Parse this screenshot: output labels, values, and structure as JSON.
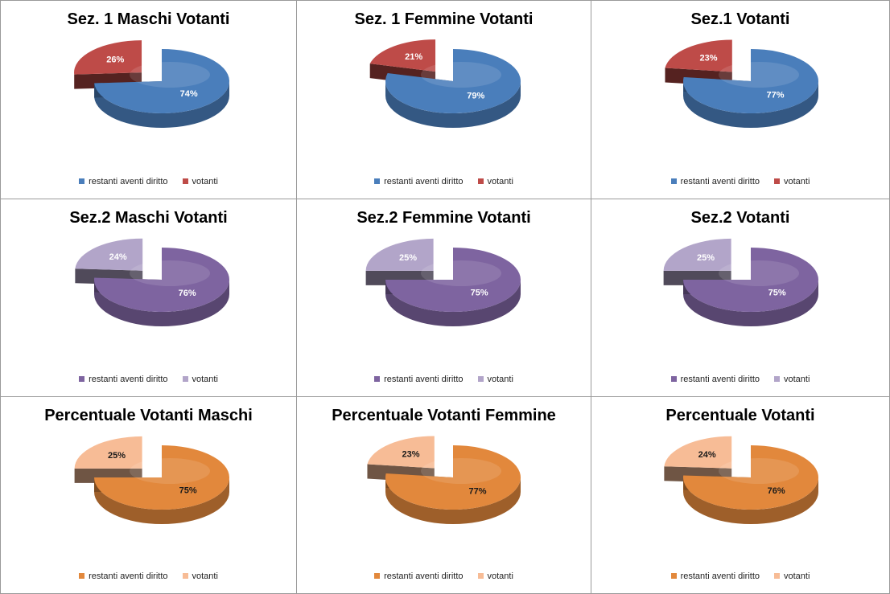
{
  "chart_data": [
    {
      "type": "pie",
      "title": "Sez. 1 Maschi Votanti",
      "slices": [
        {
          "label": "restanti aventi diritto",
          "value": 74,
          "text": "74%"
        },
        {
          "label": "votanti",
          "value": 26,
          "text": "26%"
        }
      ],
      "colors": {
        "main": "#4a7ebb",
        "exploded": "#be4b48"
      },
      "label_color": "#ffffff",
      "legend": [
        "restanti aventi diritto",
        "votanti"
      ],
      "legend_position": "bottom"
    },
    {
      "type": "pie",
      "title": "Sez. 1  Femmine Votanti",
      "slices": [
        {
          "label": "restanti aventi diritto",
          "value": 79,
          "text": "79%"
        },
        {
          "label": "votanti",
          "value": 21,
          "text": "21%"
        }
      ],
      "colors": {
        "main": "#4a7ebb",
        "exploded": "#be4b48"
      },
      "label_color": "#ffffff",
      "legend": [
        "restanti aventi diritto",
        "votanti"
      ],
      "legend_position": "bottom"
    },
    {
      "type": "pie",
      "title": "Sez.1  Votanti",
      "slices": [
        {
          "label": "restanti aventi diritto",
          "value": 77,
          "text": "77%"
        },
        {
          "label": "votanti",
          "value": 23,
          "text": "23%"
        }
      ],
      "colors": {
        "main": "#4a7ebb",
        "exploded": "#be4b48"
      },
      "label_color": "#ffffff",
      "legend": [
        "restanti aventi diritto",
        "votanti"
      ],
      "legend_position": "bottom"
    },
    {
      "type": "pie",
      "title": "Sez.2  Maschi Votanti",
      "slices": [
        {
          "label": "restanti aventi diritto",
          "value": 76,
          "text": "76%"
        },
        {
          "label": "votanti",
          "value": 24,
          "text": "24%"
        }
      ],
      "colors": {
        "main": "#7e64a0",
        "exploded": "#b2a5c9"
      },
      "label_color": "#ffffff",
      "legend": [
        "restanti aventi diritto",
        "votanti"
      ],
      "legend_position": "bottom"
    },
    {
      "type": "pie",
      "title": "Sez.2 Femmine Votanti",
      "slices": [
        {
          "label": "restanti aventi diritto",
          "value": 75,
          "text": "75%"
        },
        {
          "label": "votanti",
          "value": 25,
          "text": "25%"
        }
      ],
      "colors": {
        "main": "#7e64a0",
        "exploded": "#b2a5c9"
      },
      "label_color": "#ffffff",
      "legend": [
        "restanti aventi diritto",
        "votanti"
      ],
      "legend_position": "bottom"
    },
    {
      "type": "pie",
      "title": "Sez.2  Votanti",
      "slices": [
        {
          "label": "restanti aventi diritto",
          "value": 75,
          "text": "75%"
        },
        {
          "label": "votanti",
          "value": 25,
          "text": "25%"
        }
      ],
      "colors": {
        "main": "#7e64a0",
        "exploded": "#b2a5c9"
      },
      "label_color": "#ffffff",
      "legend": [
        "restanti aventi diritto",
        "votanti"
      ],
      "legend_position": "bottom"
    },
    {
      "type": "pie",
      "title": "Percentuale  Votanti Maschi",
      "slices": [
        {
          "label": "restanti aventi diritto",
          "value": 75,
          "text": "75%"
        },
        {
          "label": "votanti",
          "value": 25,
          "text": "25%"
        }
      ],
      "colors": {
        "main": "#e2883c",
        "exploded": "#f7bc96"
      },
      "label_color": "#1a1a1a",
      "legend": [
        "restanti aventi diritto",
        "votanti"
      ],
      "legend_position": "bottom"
    },
    {
      "type": "pie",
      "title": "Percentuale Votanti Femmine",
      "slices": [
        {
          "label": "restanti aventi diritto",
          "value": 77,
          "text": "77%"
        },
        {
          "label": "votanti",
          "value": 23,
          "text": "23%"
        }
      ],
      "colors": {
        "main": "#e2883c",
        "exploded": "#f7bc96"
      },
      "label_color": "#1a1a1a",
      "legend": [
        "restanti aventi diritto",
        "votanti"
      ],
      "legend_position": "bottom"
    },
    {
      "type": "pie",
      "title": "Percentuale Votanti",
      "slices": [
        {
          "label": "restanti aventi diritto",
          "value": 76,
          "text": "76%"
        },
        {
          "label": "votanti",
          "value": 24,
          "text": "24%"
        }
      ],
      "colors": {
        "main": "#e2883c",
        "exploded": "#f7bc96"
      },
      "label_color": "#1a1a1a",
      "legend": [
        "restanti aventi diritto",
        "votanti"
      ],
      "legend_position": "bottom"
    }
  ]
}
